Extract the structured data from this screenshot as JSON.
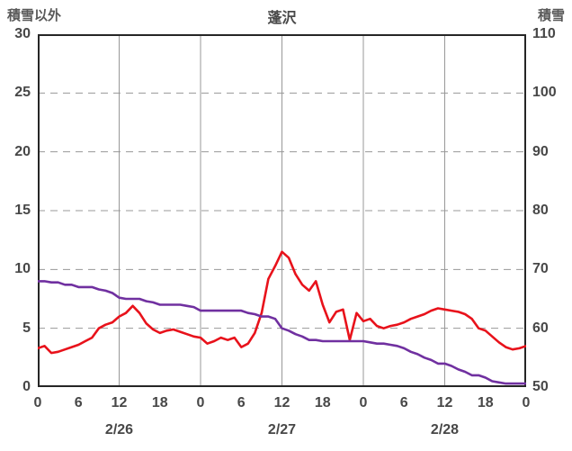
{
  "chart_data": {
    "type": "line",
    "title": "蓬沢",
    "left_axis": {
      "label": "積雪以外",
      "min": 0,
      "max": 30,
      "ticks": [
        0,
        5,
        10,
        15,
        20,
        25,
        30
      ]
    },
    "right_axis": {
      "label": "積雪",
      "min": 50,
      "max": 110,
      "ticks": [
        50,
        60,
        70,
        80,
        90,
        100,
        110
      ]
    },
    "x_axis": {
      "hours_span": 72,
      "tick_interval": 6,
      "tick_labels": [
        "0",
        "6",
        "12",
        "18",
        "0",
        "6",
        "12",
        "18",
        "0",
        "6",
        "12",
        "18",
        "0"
      ],
      "date_labels": [
        {
          "label": "2/26",
          "hour": 12
        },
        {
          "label": "2/27",
          "hour": 36
        },
        {
          "label": "2/28",
          "hour": 60
        }
      ]
    },
    "grid": {
      "horizontal_dashed": true,
      "v_line_every_hours": 12,
      "grid_color": "#989898",
      "border_color": "#262626"
    },
    "series": [
      {
        "name": "積雪以外",
        "axis": "left",
        "color": "#e8121b",
        "x_start_hour": 0,
        "x_step_hours": 1,
        "values": [
          3.3,
          3.5,
          2.9,
          3.0,
          3.2,
          3.4,
          3.6,
          3.9,
          4.2,
          5.0,
          5.3,
          5.5,
          6.0,
          6.3,
          6.9,
          6.3,
          5.4,
          4.9,
          4.6,
          4.8,
          4.9,
          4.7,
          4.5,
          4.3,
          4.2,
          3.7,
          3.9,
          4.2,
          4.0,
          4.2,
          3.4,
          3.7,
          4.6,
          6.3,
          9.2,
          10.3,
          11.5,
          11.0,
          9.6,
          8.7,
          8.2,
          9.0,
          7.0,
          5.5,
          6.4,
          6.6,
          4.0,
          6.3,
          5.6,
          5.8,
          5.2,
          5.0,
          5.2,
          5.3,
          5.5,
          5.8,
          6.0,
          6.2,
          6.5,
          6.7,
          6.6,
          6.5,
          6.4,
          6.2,
          5.8,
          5.0,
          4.8,
          4.3,
          3.8,
          3.4,
          3.2,
          3.3,
          3.5
        ]
      },
      {
        "name": "積雪",
        "axis": "right",
        "color": "#7030a0",
        "x_start_hour": 0,
        "x_step_hours": 1,
        "values": [
          68,
          68,
          67.8,
          67.8,
          67.4,
          67.4,
          67,
          67,
          67,
          66.6,
          66.4,
          66,
          65.2,
          65,
          65,
          65,
          64.6,
          64.4,
          64,
          64,
          64,
          64,
          63.8,
          63.6,
          63,
          63,
          63,
          63,
          63,
          63,
          63,
          62.6,
          62.4,
          62,
          62,
          61.6,
          60,
          59.6,
          59,
          58.6,
          58,
          58,
          57.8,
          57.8,
          57.8,
          57.8,
          57.8,
          57.8,
          57.8,
          57.6,
          57.4,
          57.4,
          57.2,
          57,
          56.6,
          56,
          55.6,
          55,
          54.6,
          54,
          54,
          53.6,
          53,
          52.6,
          52,
          52,
          51.6,
          51,
          50.8,
          50.6,
          50.6,
          50.6,
          50.6
        ]
      }
    ]
  }
}
